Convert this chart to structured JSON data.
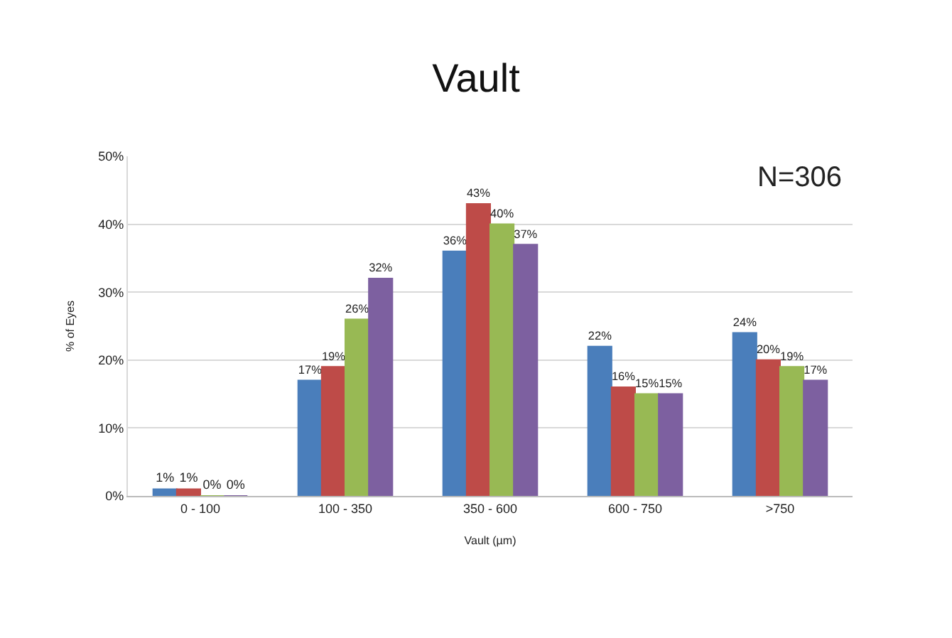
{
  "chart_data": {
    "type": "bar",
    "title": "Vault",
    "xlabel": "Vault (µm)",
    "ylabel": "% of Eyes",
    "categories": [
      "0 - 100",
      "100 - 350",
      "350 - 600",
      "600 - 750",
      ">750"
    ],
    "series": [
      {
        "color": "#4a7ebb",
        "values": [
          1,
          17,
          36,
          22,
          24
        ],
        "value_labels": [
          "1%",
          "17%",
          "36%",
          "22%",
          "24%"
        ]
      },
      {
        "color": "#be4b48",
        "values": [
          1,
          19,
          43,
          16,
          20
        ],
        "value_labels": [
          "1%",
          "19%",
          "43%",
          "16%",
          "20%"
        ]
      },
      {
        "color": "#98b954",
        "values": [
          0,
          26,
          40,
          15,
          19
        ],
        "value_labels": [
          "0%",
          "26%",
          "40%",
          "15%",
          "19%"
        ]
      },
      {
        "color": "#7d60a0",
        "values": [
          0,
          32,
          37,
          15,
          17
        ],
        "value_labels": [
          "0%",
          "32%",
          "37%",
          "15%",
          "17%"
        ]
      }
    ],
    "ylim": [
      0,
      50
    ],
    "yticks": [
      {
        "value": 0,
        "label": "0%"
      },
      {
        "value": 10,
        "label": "10%"
      },
      {
        "value": 20,
        "label": "20%"
      },
      {
        "value": 30,
        "label": "30%"
      },
      {
        "value": 40,
        "label": "40%"
      },
      {
        "value": 50,
        "label": "50%"
      }
    ],
    "grid": "y",
    "legend": false,
    "annotations": [
      "N=306"
    ]
  }
}
